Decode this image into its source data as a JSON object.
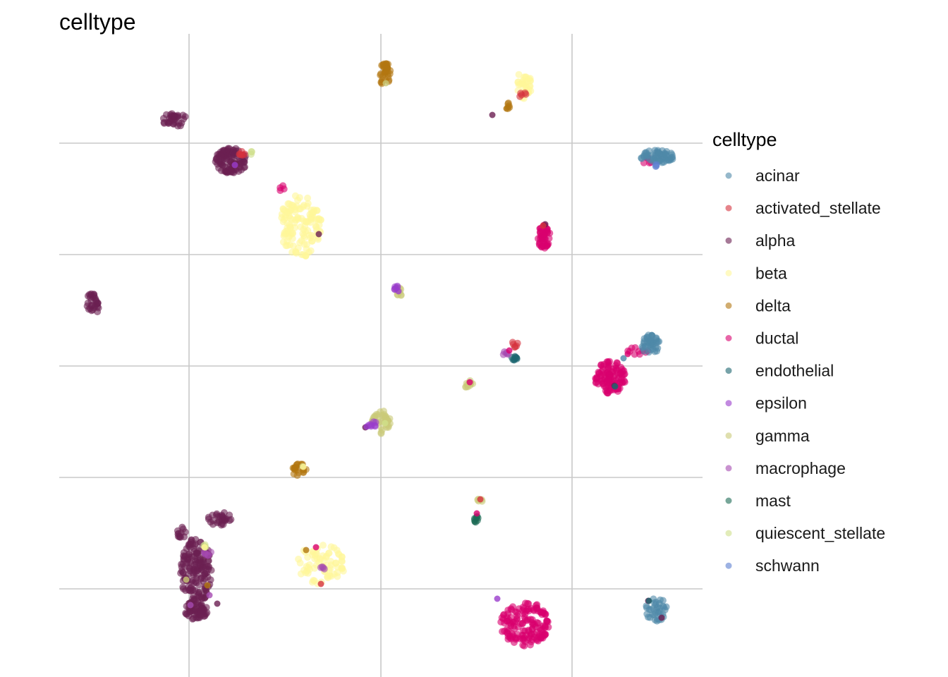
{
  "chart_data": {
    "type": "scatter",
    "title": "celltype",
    "xlabel": "",
    "ylabel": "",
    "grid": true,
    "axis_ticks_shown": false,
    "legend": {
      "title": "celltype",
      "placement": "right"
    },
    "series": [
      {
        "name": "acinar",
        "color": "#4e88a8"
      },
      {
        "name": "activated_stellate",
        "color": "#d6323e"
      },
      {
        "name": "alpha",
        "color": "#6b1f52"
      },
      {
        "name": "beta",
        "color": "#fff799"
      },
      {
        "name": "delta",
        "color": "#b27710"
      },
      {
        "name": "ductal",
        "color": "#d9006e"
      },
      {
        "name": "endothelial",
        "color": "#1d6670"
      },
      {
        "name": "epsilon",
        "color": "#9a3ccc"
      },
      {
        "name": "gamma",
        "color": "#c9c978"
      },
      {
        "name": "macrophage",
        "color": "#a54ab0"
      },
      {
        "name": "mast",
        "color": "#1c6a55"
      },
      {
        "name": "quiescent_stellate",
        "color": "#cfe08a"
      },
      {
        "name": "schwann",
        "color": "#5b7fd1"
      }
    ],
    "clusters": [
      {
        "type": "alpha",
        "x": 248,
        "y": 170,
        "w": 36,
        "h": 20,
        "n": 35
      },
      {
        "type": "alpha",
        "x": 328,
        "y": 228,
        "w": 46,
        "h": 36,
        "n": 110
      },
      {
        "type": "alpha",
        "x": 131,
        "y": 432,
        "w": 18,
        "h": 34,
        "n": 30
      },
      {
        "type": "alpha",
        "x": 312,
        "y": 735,
        "w": 34,
        "h": 22,
        "n": 30
      },
      {
        "type": "alpha",
        "x": 258,
        "y": 756,
        "w": 14,
        "h": 18,
        "n": 12
      },
      {
        "type": "alpha",
        "x": 278,
        "y": 812,
        "w": 44,
        "h": 100,
        "n": 170
      },
      {
        "type": "alpha",
        "x": 278,
        "y": 866,
        "w": 36,
        "h": 26,
        "n": 50
      },
      {
        "type": "beta",
        "x": 426,
        "y": 320,
        "w": 60,
        "h": 90,
        "n": 130
      },
      {
        "type": "beta",
        "x": 743,
        "y": 120,
        "w": 22,
        "h": 40,
        "n": 35
      },
      {
        "type": "beta",
        "x": 455,
        "y": 800,
        "w": 70,
        "h": 56,
        "n": 75
      },
      {
        "type": "delta",
        "x": 546,
        "y": 105,
        "w": 18,
        "h": 34,
        "n": 35
      },
      {
        "type": "delta",
        "x": 424,
        "y": 666,
        "w": 22,
        "h": 18,
        "n": 22
      },
      {
        "type": "delta",
        "x": 721,
        "y": 150,
        "w": 10,
        "h": 10,
        "n": 6
      },
      {
        "type": "ductal",
        "x": 771,
        "y": 333,
        "w": 18,
        "h": 42,
        "n": 45
      },
      {
        "type": "ductal",
        "x": 865,
        "y": 535,
        "w": 44,
        "h": 46,
        "n": 110
      },
      {
        "type": "ductal",
        "x": 745,
        "y": 885,
        "w": 70,
        "h": 64,
        "n": 150
      },
      {
        "type": "ductal",
        "x": 400,
        "y": 268,
        "w": 8,
        "h": 10,
        "n": 4
      },
      {
        "type": "ductal",
        "x": 918,
        "y": 228,
        "w": 14,
        "h": 10,
        "n": 6
      },
      {
        "type": "ductal",
        "x": 905,
        "y": 498,
        "w": 30,
        "h": 12,
        "n": 10
      },
      {
        "type": "acinar",
        "x": 932,
        "y": 222,
        "w": 48,
        "h": 18,
        "n": 55
      },
      {
        "type": "acinar",
        "x": 922,
        "y": 488,
        "w": 26,
        "h": 28,
        "n": 40
      },
      {
        "type": "acinar",
        "x": 930,
        "y": 864,
        "w": 30,
        "h": 34,
        "n": 35
      },
      {
        "type": "gamma",
        "x": 541,
        "y": 598,
        "w": 26,
        "h": 34,
        "n": 40
      },
      {
        "type": "gamma",
        "x": 665,
        "y": 545,
        "w": 14,
        "h": 14,
        "n": 12
      },
      {
        "type": "gamma",
        "x": 565,
        "y": 415,
        "w": 10,
        "h": 14,
        "n": 10
      },
      {
        "type": "gamma",
        "x": 680,
        "y": 710,
        "w": 8,
        "h": 8,
        "n": 5
      },
      {
        "type": "epsilon",
        "x": 562,
        "y": 410,
        "w": 8,
        "h": 10,
        "n": 6
      },
      {
        "type": "epsilon",
        "x": 528,
        "y": 602,
        "w": 12,
        "h": 10,
        "n": 8
      },
      {
        "type": "endothelial",
        "x": 729,
        "y": 508,
        "w": 8,
        "h": 8,
        "n": 8
      },
      {
        "type": "mast",
        "x": 674,
        "y": 736,
        "w": 8,
        "h": 10,
        "n": 8
      },
      {
        "type": "activated_stellate",
        "x": 730,
        "y": 488,
        "w": 8,
        "h": 10,
        "n": 6
      },
      {
        "type": "activated_stellate",
        "x": 345,
        "y": 218,
        "w": 14,
        "h": 8,
        "n": 6
      },
      {
        "type": "activated_stellate",
        "x": 740,
        "y": 135,
        "w": 12,
        "h": 10,
        "n": 5
      },
      {
        "type": "macrophage",
        "x": 294,
        "y": 782,
        "w": 12,
        "h": 12,
        "n": 6
      },
      {
        "type": "macrophage",
        "x": 456,
        "y": 808,
        "w": 10,
        "h": 10,
        "n": 4
      },
      {
        "type": "macrophage",
        "x": 717,
        "y": 502,
        "w": 10,
        "h": 8,
        "n": 5
      },
      {
        "type": "quiescent_stellate",
        "x": 290,
        "y": 776,
        "w": 8,
        "h": 8,
        "n": 4
      },
      {
        "type": "quiescent_stellate",
        "x": 357,
        "y": 216,
        "w": 6,
        "h": 6,
        "n": 3
      },
      {
        "type": "schwann",
        "x": 932,
        "y": 234,
        "w": 8,
        "h": 6,
        "n": 3
      }
    ],
    "points": [
      {
        "type": "alpha",
        "x": 698,
        "y": 163
      },
      {
        "type": "alpha",
        "x": 452,
        "y": 332
      },
      {
        "type": "alpha",
        "x": 773,
        "y": 318
      },
      {
        "type": "alpha",
        "x": 871,
        "y": 547
      },
      {
        "type": "alpha",
        "x": 518,
        "y": 606
      },
      {
        "type": "alpha",
        "x": 919,
        "y": 852
      },
      {
        "type": "alpha",
        "x": 938,
        "y": 876
      },
      {
        "type": "alpha",
        "x": 308,
        "y": 856
      },
      {
        "type": "alpha",
        "x": 288,
        "y": 868
      },
      {
        "type": "delta",
        "x": 434,
        "y": 780
      },
      {
        "type": "delta",
        "x": 294,
        "y": 830
      },
      {
        "type": "delta",
        "x": 549,
        "y": 96
      },
      {
        "type": "delta",
        "x": 718,
        "y": 154
      },
      {
        "type": "ductal",
        "x": 765,
        "y": 324
      },
      {
        "type": "ductal",
        "x": 448,
        "y": 776
      },
      {
        "type": "ductal",
        "x": 676,
        "y": 728
      },
      {
        "type": "ductal",
        "x": 666,
        "y": 542
      },
      {
        "type": "ductal",
        "x": 722,
        "y": 497
      },
      {
        "type": "ductal",
        "x": 890,
        "y": 502
      },
      {
        "type": "epsilon",
        "x": 333,
        "y": 234
      },
      {
        "type": "epsilon",
        "x": 705,
        "y": 849
      },
      {
        "type": "epsilon",
        "x": 565,
        "y": 413
      },
      {
        "type": "epsilon",
        "x": 520,
        "y": 605
      },
      {
        "type": "gamma",
        "x": 264,
        "y": 822
      },
      {
        "type": "gamma",
        "x": 547,
        "y": 118
      },
      {
        "type": "gamma",
        "x": 429,
        "y": 661
      },
      {
        "type": "gamma",
        "x": 545,
        "y": 599
      },
      {
        "type": "quiescent_stellate",
        "x": 546,
        "y": 600
      },
      {
        "type": "macrophage",
        "x": 297,
        "y": 844
      },
      {
        "type": "macrophage",
        "x": 270,
        "y": 858
      },
      {
        "type": "activated_stellate",
        "x": 455,
        "y": 828
      },
      {
        "type": "activated_stellate",
        "x": 681,
        "y": 708
      },
      {
        "type": "activated_stellate",
        "x": 770,
        "y": 320
      },
      {
        "type": "beta",
        "x": 290,
        "y": 776
      },
      {
        "type": "beta",
        "x": 430,
        "y": 662
      },
      {
        "type": "acinar",
        "x": 924,
        "y": 475
      },
      {
        "type": "acinar",
        "x": 884,
        "y": 508
      },
      {
        "type": "endothelial",
        "x": 729,
        "y": 510
      },
      {
        "type": "endothelial",
        "x": 872,
        "y": 548
      },
      {
        "type": "endothelial",
        "x": 920,
        "y": 852
      },
      {
        "type": "mast",
        "x": 673,
        "y": 740
      }
    ]
  }
}
